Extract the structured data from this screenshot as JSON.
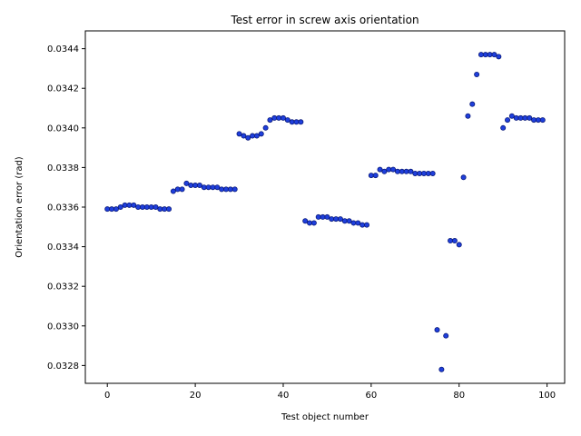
{
  "chart_data": {
    "type": "scatter",
    "title": "Test error in screw axis orientation",
    "xlabel": "Test object number",
    "ylabel": "Orientation error (rad)",
    "xlim": [
      -5,
      104
    ],
    "ylim": [
      0.03271,
      0.03449
    ],
    "xticks": [
      0,
      20,
      40,
      60,
      80,
      100
    ],
    "yticks": [
      0.0328,
      0.033,
      0.0332,
      0.0334,
      0.0336,
      0.0338,
      0.034,
      0.0342,
      0.0344
    ],
    "ytick_labels": [
      "0.0328",
      "0.0330",
      "0.0332",
      "0.0334",
      "0.0336",
      "0.0338",
      "0.0340",
      "0.0342",
      "0.0344"
    ],
    "grid": false,
    "marker_color": "#1f3fdc",
    "marker_edge_color": "#0a1a7a",
    "x": [
      0,
      1,
      2,
      3,
      4,
      5,
      6,
      7,
      8,
      9,
      10,
      11,
      12,
      13,
      14,
      15,
      16,
      17,
      18,
      19,
      20,
      21,
      22,
      23,
      24,
      25,
      26,
      27,
      28,
      29,
      30,
      31,
      32,
      33,
      34,
      35,
      36,
      37,
      38,
      39,
      40,
      41,
      42,
      43,
      44,
      45,
      46,
      47,
      48,
      49,
      50,
      51,
      52,
      53,
      54,
      55,
      56,
      57,
      58,
      59,
      60,
      61,
      62,
      63,
      64,
      65,
      66,
      67,
      68,
      69,
      70,
      71,
      72,
      73,
      74,
      75,
      76,
      77,
      78,
      79,
      80,
      81,
      82,
      83,
      84,
      85,
      86,
      87,
      88,
      89,
      90,
      91,
      92,
      93,
      94,
      95,
      96,
      97,
      98,
      99
    ],
    "y": [
      0.03359,
      0.03359,
      0.03359,
      0.0336,
      0.03361,
      0.03361,
      0.03361,
      0.0336,
      0.0336,
      0.0336,
      0.0336,
      0.0336,
      0.03359,
      0.03359,
      0.03359,
      0.03368,
      0.03369,
      0.03369,
      0.03372,
      0.03371,
      0.03371,
      0.03371,
      0.0337,
      0.0337,
      0.0337,
      0.0337,
      0.03369,
      0.03369,
      0.03369,
      0.03369,
      0.03397,
      0.03396,
      0.03395,
      0.03396,
      0.03396,
      0.03397,
      0.034,
      0.03404,
      0.03405,
      0.03405,
      0.03405,
      0.03404,
      0.03403,
      0.03403,
      0.03403,
      0.03353,
      0.03352,
      0.03352,
      0.03355,
      0.03355,
      0.03355,
      0.03354,
      0.03354,
      0.03354,
      0.03353,
      0.03353,
      0.03352,
      0.03352,
      0.03351,
      0.03351,
      0.03376,
      0.03376,
      0.03379,
      0.03378,
      0.03379,
      0.03379,
      0.03378,
      0.03378,
      0.03378,
      0.03378,
      0.03377,
      0.03377,
      0.03377,
      0.03377,
      0.03377,
      0.03298,
      0.03278,
      0.03295,
      0.03343,
      0.03343,
      0.03341,
      0.03375,
      0.03406,
      0.03412,
      0.03427,
      0.03437,
      0.03437,
      0.03437,
      0.03437,
      0.03436,
      0.034,
      0.03404,
      0.03406,
      0.03405,
      0.03405,
      0.03405,
      0.03405,
      0.03404,
      0.03404,
      0.03404
    ]
  }
}
